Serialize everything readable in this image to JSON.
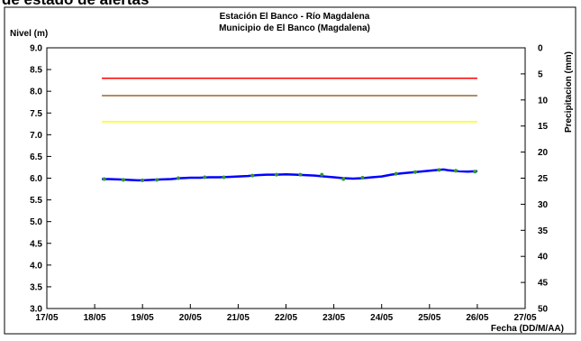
{
  "clipped_heading": "de estado de alertas",
  "chart_data": {
    "type": "line",
    "title": "Estación El Banco - Río Magdalena",
    "subtitle": "Municipio de El Banco (Magdalena)",
    "ylabel": "Nivel (m)",
    "y2label": "Precipitacion (mm)",
    "xlabel": "Fecha (DD/M/AA)",
    "x_ticks": [
      "17/05",
      "18/05",
      "19/05",
      "20/05",
      "21/05",
      "22/05",
      "23/05",
      "24/05",
      "25/05",
      "26/05",
      "27/05"
    ],
    "ylim": [
      3.0,
      9.0
    ],
    "y_ticks": [
      "3.0",
      "3.5",
      "4.0",
      "4.5",
      "5.0",
      "5.5",
      "6.0",
      "6.5",
      "7.0",
      "7.5",
      "8.0",
      "8.5",
      "9.0"
    ],
    "y2lim": [
      0,
      50
    ],
    "y2_reversed": true,
    "y2_ticks": [
      "0",
      "5",
      "10",
      "15",
      "20",
      "25",
      "30",
      "35",
      "40",
      "45",
      "50"
    ],
    "grid": false,
    "alert_lines": [
      {
        "color": "#ff0000",
        "y": 8.3,
        "x_start": 1.15,
        "x_end": 9.0
      },
      {
        "color": "#996633",
        "y": 7.9,
        "x_start": 1.15,
        "x_end": 9.0
      },
      {
        "color": "#ffff00",
        "y": 7.3,
        "x_start": 1.15,
        "x_end": 9.0
      }
    ],
    "series": [
      {
        "color": "#0000ff",
        "points": [
          [
            1.15,
            5.98
          ],
          [
            1.3,
            5.98
          ],
          [
            1.5,
            5.97
          ],
          [
            1.7,
            5.96
          ],
          [
            1.9,
            5.95
          ],
          [
            2.0,
            5.95
          ],
          [
            2.2,
            5.96
          ],
          [
            2.4,
            5.97
          ],
          [
            2.6,
            5.98
          ],
          [
            2.8,
            6.0
          ],
          [
            3.0,
            6.01
          ],
          [
            3.2,
            6.01
          ],
          [
            3.4,
            6.02
          ],
          [
            3.6,
            6.02
          ],
          [
            3.8,
            6.03
          ],
          [
            4.0,
            6.04
          ],
          [
            4.2,
            6.05
          ],
          [
            4.4,
            6.07
          ],
          [
            4.6,
            6.08
          ],
          [
            4.8,
            6.08
          ],
          [
            5.0,
            6.09
          ],
          [
            5.2,
            6.08
          ],
          [
            5.4,
            6.07
          ],
          [
            5.6,
            6.06
          ],
          [
            5.8,
            6.04
          ],
          [
            6.0,
            6.02
          ],
          [
            6.2,
            6.0
          ],
          [
            6.4,
            5.99
          ],
          [
            6.6,
            6.0
          ],
          [
            6.8,
            6.02
          ],
          [
            7.0,
            6.04
          ],
          [
            7.2,
            6.08
          ],
          [
            7.4,
            6.11
          ],
          [
            7.6,
            6.13
          ],
          [
            7.8,
            6.15
          ],
          [
            8.0,
            6.17
          ],
          [
            8.2,
            6.19
          ],
          [
            8.3,
            6.2
          ],
          [
            8.4,
            6.18
          ],
          [
            8.6,
            6.16
          ],
          [
            8.8,
            6.15
          ],
          [
            9.0,
            6.16
          ]
        ]
      },
      {
        "color": "#339933",
        "marker": "circle",
        "points": [
          [
            1.2,
            5.98
          ],
          [
            1.6,
            5.96
          ],
          [
            2.0,
            5.95
          ],
          [
            2.3,
            5.96
          ],
          [
            2.75,
            6.0
          ],
          [
            3.3,
            6.02
          ],
          [
            3.7,
            6.02
          ],
          [
            4.3,
            6.06
          ],
          [
            4.8,
            6.08
          ],
          [
            5.3,
            6.08
          ],
          [
            5.75,
            6.08
          ],
          [
            6.2,
            5.98
          ],
          [
            6.6,
            6.01
          ],
          [
            7.3,
            6.1
          ],
          [
            7.7,
            6.14
          ],
          [
            8.2,
            6.19
          ],
          [
            8.55,
            6.17
          ],
          [
            8.95,
            6.15
          ]
        ]
      }
    ]
  }
}
